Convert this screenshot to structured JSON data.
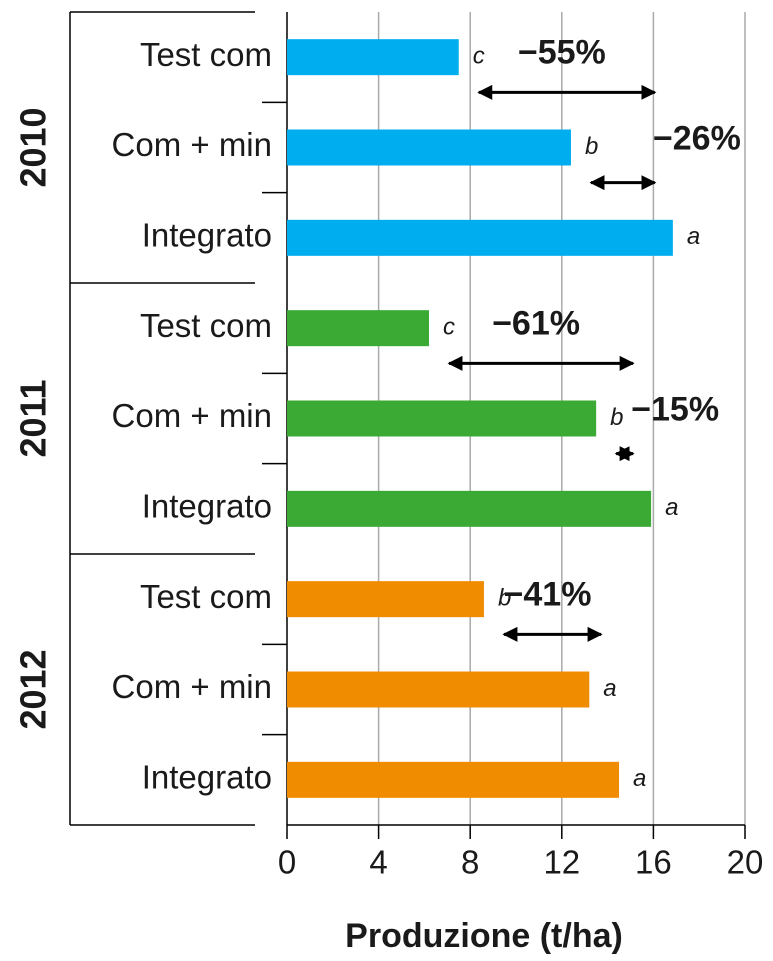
{
  "chart_data": {
    "type": "bar",
    "xlabel": "Produzione (t/ha)",
    "xlim": [
      0,
      20
    ],
    "xticks": [
      0,
      4,
      8,
      12,
      16,
      20
    ],
    "grid": true,
    "groups": [
      {
        "label": "2010",
        "color": "#00aeef",
        "categories": [
          "Test com",
          "Com + min",
          "Integrato"
        ],
        "values": [
          7.5,
          12.4,
          16.85
        ],
        "letters": [
          "c",
          "b",
          "a"
        ],
        "annotations": [
          "−55%",
          "−26%"
        ]
      },
      {
        "label": "2011",
        "color": "#3aaa35",
        "categories": [
          "Test com",
          "Com + min",
          "Integrato"
        ],
        "values": [
          6.2,
          13.5,
          15.9
        ],
        "letters": [
          "c",
          "b",
          "a"
        ],
        "annotations": [
          "−61%",
          "−15%"
        ]
      },
      {
        "label": "2012",
        "color": "#f08c00",
        "categories": [
          "Test com",
          "Com + min",
          "Integrato"
        ],
        "values": [
          8.6,
          13.2,
          14.5
        ],
        "letters": [
          "b",
          "a",
          "a"
        ],
        "annotations": [
          "−41%"
        ]
      }
    ]
  }
}
